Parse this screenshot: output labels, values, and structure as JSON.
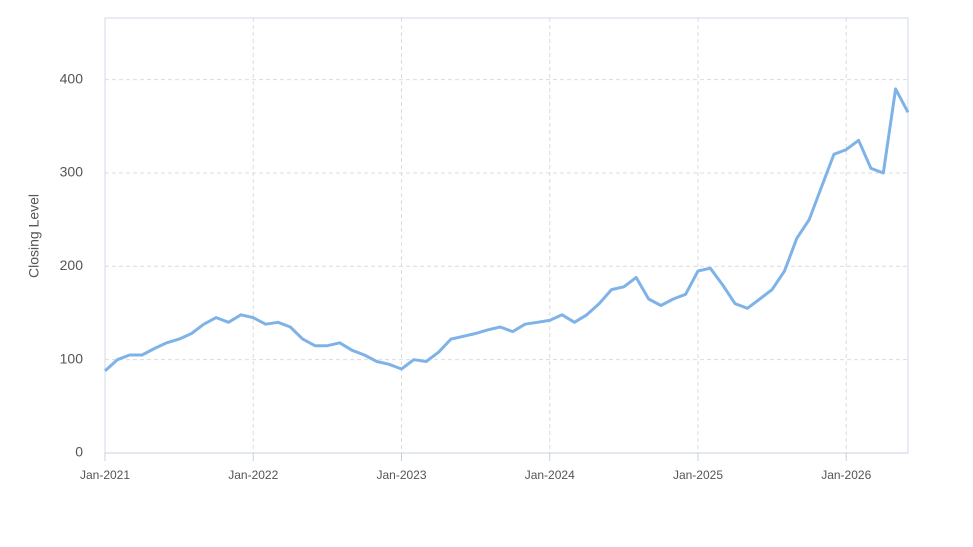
{
  "chart_data": {
    "type": "line",
    "y_label": "Closing Level",
    "x": [
      "2021-01",
      "2021-02",
      "2021-03",
      "2021-04",
      "2021-05",
      "2021-06",
      "2021-07",
      "2021-08",
      "2021-09",
      "2021-10",
      "2021-11",
      "2021-12",
      "2022-01",
      "2022-02",
      "2022-03",
      "2022-04",
      "2022-05",
      "2022-06",
      "2022-07",
      "2022-08",
      "2022-09",
      "2022-10",
      "2022-11",
      "2022-12",
      "2023-01",
      "2023-02",
      "2023-03",
      "2023-04",
      "2023-05",
      "2023-06",
      "2023-07",
      "2023-08",
      "2023-09",
      "2023-10",
      "2023-11",
      "2023-12",
      "2024-01",
      "2024-02",
      "2024-03",
      "2024-04",
      "2024-05",
      "2024-06",
      "2024-07",
      "2024-08",
      "2024-09",
      "2024-10",
      "2024-11",
      "2024-12",
      "2025-01",
      "2025-02",
      "2025-03",
      "2025-04",
      "2025-05",
      "2025-06",
      "2025-07",
      "2025-08",
      "2025-09",
      "2025-10",
      "2025-11",
      "2025-12",
      "2026-01",
      "2026-02",
      "2026-03",
      "2026-04",
      "2026-05",
      "2026-06"
    ],
    "values": [
      88,
      100,
      105,
      105,
      112,
      118,
      122,
      128,
      138,
      145,
      140,
      148,
      145,
      138,
      140,
      135,
      122,
      115,
      115,
      118,
      110,
      105,
      98,
      95,
      90,
      100,
      98,
      108,
      122,
      125,
      128,
      132,
      135,
      130,
      138,
      140,
      142,
      148,
      140,
      148,
      160,
      175,
      178,
      188,
      165,
      158,
      165,
      170,
      195,
      198,
      180,
      160,
      155,
      165,
      175,
      195,
      230,
      250,
      285,
      320,
      325,
      335,
      305,
      300,
      390,
      365
    ],
    "color": "#7fb3e8",
    "xlim": [
      "2021-01",
      "2026-06"
    ],
    "xticks": [
      {
        "value": "2021-01",
        "label": "Jan-2021"
      },
      {
        "value": "2022-01",
        "label": "Jan-2022"
      },
      {
        "value": "2023-01",
        "label": "Jan-2023"
      },
      {
        "value": "2024-01",
        "label": "Jan-2024"
      },
      {
        "value": "2025-01",
        "label": "Jan-2025"
      },
      {
        "value": "2026-01",
        "label": "Jan-2026"
      }
    ],
    "ylim": [
      0,
      466
    ],
    "yticks": [
      0,
      100,
      200,
      300,
      400
    ],
    "grid": true
  }
}
